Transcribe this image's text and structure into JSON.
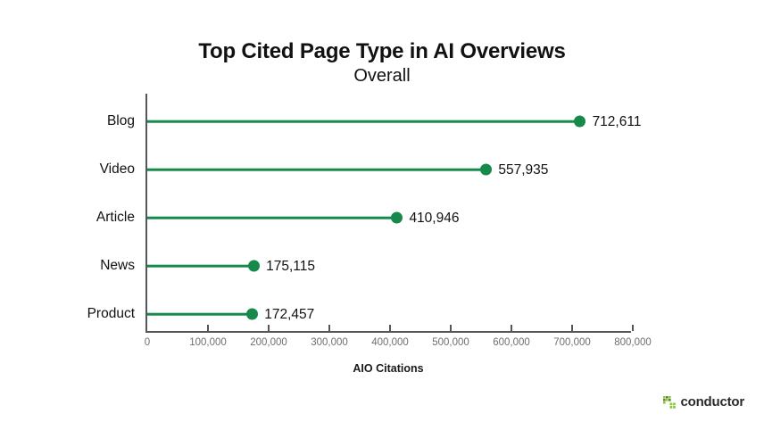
{
  "header": {
    "title": "Top Cited Page Type in AI Overviews",
    "subtitle": "Overall"
  },
  "chart_data": {
    "type": "bar",
    "orientation": "horizontal",
    "style": "lollipop",
    "title": "Top Cited Page Type in AI Overviews",
    "subtitle": "Overall",
    "categories": [
      "Blog",
      "Video",
      "Article",
      "News",
      "Product"
    ],
    "values": [
      712611,
      557935,
      410946,
      175115,
      172457
    ],
    "value_labels": [
      "712,611",
      "557,935",
      "410,946",
      "175,115",
      "172,457"
    ],
    "xlabel": "AIO Citations",
    "ylabel": "",
    "xlim": [
      0,
      800000
    ],
    "xticks": [
      0,
      100000,
      200000,
      300000,
      400000,
      500000,
      600000,
      700000,
      800000
    ],
    "xtick_labels": [
      "0",
      "100,000",
      "200,000",
      "300,000",
      "400,000",
      "500,000",
      "600,000",
      "700,000",
      "800,000"
    ],
    "grid": false,
    "legend": "none",
    "colors": {
      "stem": "#17894a",
      "marker": "#17894a",
      "axis": "#55565a",
      "tick_label": "#6e6e6e",
      "text": "#111111"
    }
  },
  "footer": {
    "brand": "conductor",
    "logo_colors": {
      "lime": "#8cc63e",
      "olive": "#5d832c"
    }
  }
}
